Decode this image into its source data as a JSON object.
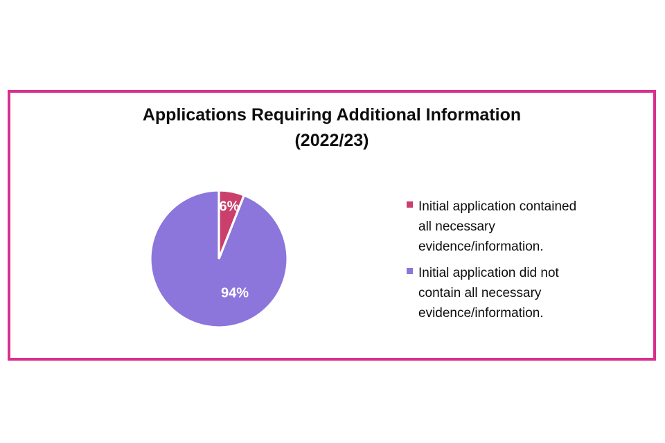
{
  "frame": {
    "border_color": "#D9308F"
  },
  "title": {
    "line1": "Applications Requiring Additional Information",
    "line2": "(2022/23)"
  },
  "chart_data": {
    "type": "pie",
    "title": "Applications Requiring Additional Information (2022/23)",
    "slices": [
      {
        "label": "Initial application contained all necessary evidence/information.",
        "value": 6,
        "display": "6%",
        "color": "#CA3F6C"
      },
      {
        "label": "Initial application did not contain all necessary evidence/information.",
        "value": 94,
        "display": "94%",
        "color": "#8C75DB"
      }
    ],
    "start_angle_deg": -90,
    "direction": "clockwise",
    "slice_border_color": "#FFFFFF",
    "data_label_color": "#FFFFFF",
    "legend_position": "right"
  },
  "legend": {
    "items": [
      {
        "color": "#CA3F6C",
        "lines": [
          "Initial application contained",
          "all necessary",
          "evidence/information."
        ]
      },
      {
        "color": "#8C75DB",
        "lines": [
          "Initial application did not",
          "contain all necessary",
          "evidence/information."
        ]
      }
    ]
  }
}
